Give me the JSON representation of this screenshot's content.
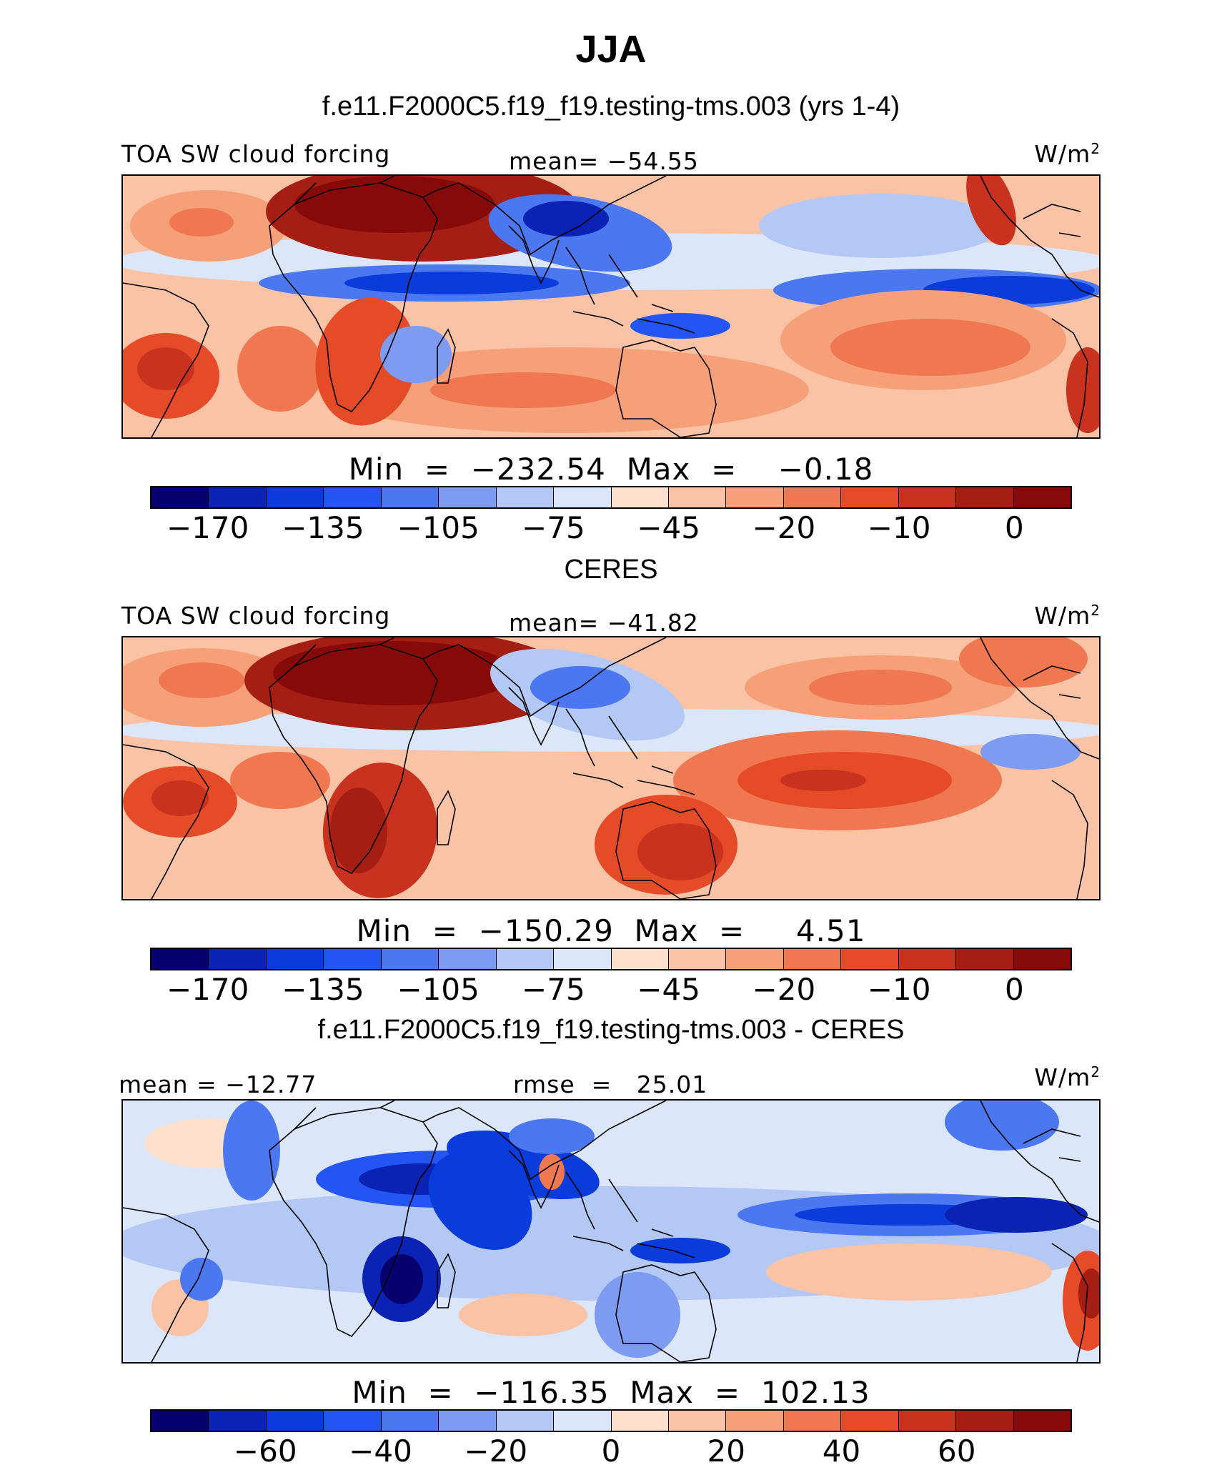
{
  "title": "JJA",
  "panels": [
    {
      "subtitle": "f.e11.F2000C5.f19_f19.testing-tms.003 (yrs 1-4)",
      "variable": "TOA SW cloud forcing",
      "left_label": "TOA SW cloud forcing",
      "center_label": "mean= −54.55",
      "units": "W/m",
      "units_exp": "2",
      "stats": "Min  =  −232.54  Max  =    −0.18",
      "colorbar_ticks": [
        "−170",
        "−135",
        "−105",
        "−75",
        "−45",
        "−20",
        "−10",
        "0"
      ]
    },
    {
      "subtitle": "CERES",
      "variable": "TOA SW cloud forcing",
      "left_label": "TOA SW cloud forcing",
      "center_label": "mean= −41.82",
      "units": "W/m",
      "units_exp": "2",
      "stats": "Min  =  −150.29  Max  =     4.51",
      "colorbar_ticks": [
        "−170",
        "−135",
        "−105",
        "−75",
        "−45",
        "−20",
        "−10",
        "0"
      ]
    },
    {
      "subtitle": "f.e11.F2000C5.f19_f19.testing-tms.003 - CERES",
      "variable": "difference",
      "left_label": "mean = −12.77",
      "center_label": "rmse  =   25.01",
      "units": "W/m",
      "units_exp": "2",
      "stats": "Min  =  −116.35  Max  =  102.13",
      "colorbar_ticks": [
        "−60",
        "−40",
        "−20",
        "0",
        "20",
        "40",
        "60"
      ]
    }
  ],
  "colors": {
    "palette": [
      "#08006e",
      "#0a23b4",
      "#0a3cdc",
      "#2355f5",
      "#4b78f0",
      "#7d9bf0",
      "#b4c8f5",
      "#dce6fa",
      "#fde1cd",
      "#fac3a5",
      "#f5a078",
      "#f07850",
      "#e64b28",
      "#c8321e",
      "#a51e14",
      "#870a0a"
    ]
  }
}
